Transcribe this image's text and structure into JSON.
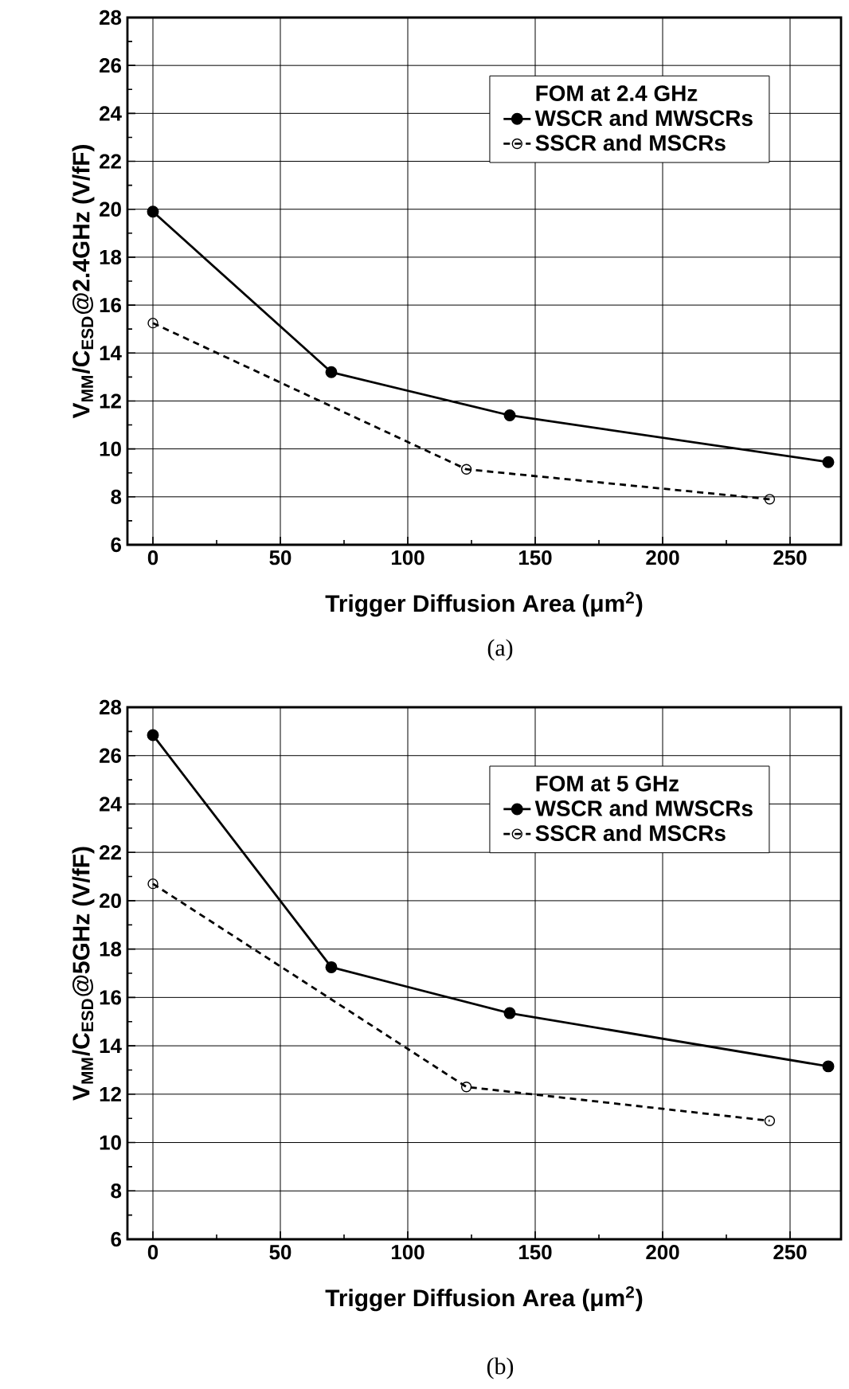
{
  "chart_data": [
    {
      "type": "line",
      "legend_title": "FOM at 2.4 GHz",
      "xlabel": "Trigger Diffusion Area (μm$^{2}$)",
      "ylabel": "V$_{MM}$/C$_{ESD}$@2.4GHz (V/fF)",
      "annotations": [
        "(a)"
      ],
      "xlim": [
        -10,
        270
      ],
      "xticks": [
        0,
        50,
        100,
        150,
        200,
        250
      ],
      "ylim": [
        6,
        28
      ],
      "yticks": [
        6,
        8,
        10,
        12,
        14,
        16,
        18,
        20,
        22,
        24,
        26,
        28
      ],
      "grid": true,
      "legend": "top right",
      "marker": "circle",
      "series": [
        {
          "name": "WSCR and MWSCRs",
          "color": "#000000",
          "line_style": "solid",
          "x": [
            0,
            70,
            140,
            265
          ],
          "values": [
            19.9,
            13.2,
            11.4,
            9.45
          ]
        },
        {
          "name": "SSCR and MSCRs",
          "color": "#000000",
          "line_style": "dashed",
          "x": [
            0,
            123,
            242
          ],
          "values": [
            15.25,
            9.15,
            7.9
          ]
        }
      ]
    },
    {
      "type": "line",
      "legend_title": "FOM at 5 GHz",
      "xlabel": "Trigger Diffusion Area (μm$^{2}$)",
      "ylabel": "V$_{MM}$/C$_{ESD}$@5GHz (V/fF)",
      "annotations": [
        "(b)"
      ],
      "xlim": [
        -10,
        270
      ],
      "xticks": [
        0,
        50,
        100,
        150,
        200,
        250
      ],
      "ylim": [
        6,
        28
      ],
      "yticks": [
        6,
        8,
        10,
        12,
        14,
        16,
        18,
        20,
        22,
        24,
        26,
        28
      ],
      "grid": true,
      "legend": "top right",
      "marker": "circle",
      "series": [
        {
          "name": "WSCR and MWSCRs",
          "color": "#000000",
          "line_style": "solid",
          "x": [
            0,
            70,
            140,
            265
          ],
          "values": [
            26.85,
            17.25,
            15.35,
            13.15
          ]
        },
        {
          "name": "SSCR and MSCRs",
          "color": "#000000",
          "line_style": "dashed",
          "x": [
            0,
            123,
            242
          ],
          "values": [
            20.7,
            12.3,
            10.9
          ]
        }
      ]
    }
  ]
}
